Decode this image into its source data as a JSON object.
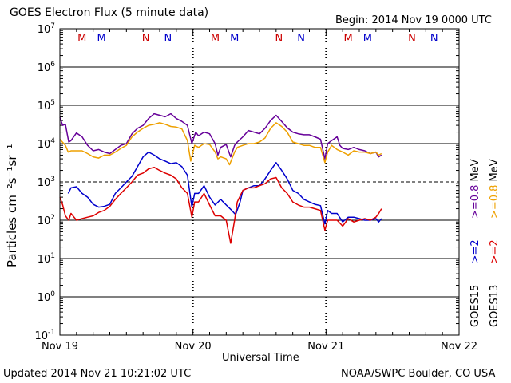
{
  "header": {
    "title": "GOES Electron Flux (5 minute data)",
    "begin": "Begin: 2014 Nov 19 0000 UTC"
  },
  "footer": {
    "updated": "Updated 2014 Nov 21 10:21:02 UTC",
    "source": "NOAA/SWPC Boulder, CO USA"
  },
  "colors": {
    "goes15_2mev": "#0000cc",
    "goes15_08mev": "#660099",
    "goes13_2mev": "#dd0000",
    "goes13_08mev": "#eea000",
    "marker_m": "#cc0000",
    "marker_m2": "#0000cc",
    "marker_n": "#cc0000",
    "marker_n2": "#0000cc"
  },
  "chart_data": {
    "type": "line",
    "xlabel": "Universal Time",
    "ylabel": "Particles cm⁻²s⁻¹sr⁻¹",
    "yscale": "log",
    "xlim": [
      0,
      72
    ],
    "ylim": [
      0.1,
      10000000
    ],
    "x_ticks": [
      {
        "x": 0,
        "label": "Nov 19"
      },
      {
        "x": 24,
        "label": "Nov 20"
      },
      {
        "x": 48,
        "label": "Nov 21"
      },
      {
        "x": 72,
        "label": "Nov 22"
      }
    ],
    "y_ticks": [
      {
        "exp": 7,
        "base": "10",
        "sup": "7"
      },
      {
        "exp": 6,
        "base": "10",
        "sup": "6"
      },
      {
        "exp": 5,
        "base": "10",
        "sup": "5"
      },
      {
        "exp": 4,
        "base": "10",
        "sup": "4"
      },
      {
        "exp": 3,
        "base": "10",
        "sup": "3"
      },
      {
        "exp": 2,
        "base": "10",
        "sup": "2"
      },
      {
        "exp": 1,
        "base": "10",
        "sup": "1"
      },
      {
        "exp": 0,
        "base": "10",
        "sup": "0"
      },
      {
        "exp": -1,
        "base": "10",
        "sup": "-1"
      }
    ],
    "gridlines_solid": [
      6,
      5,
      4,
      2,
      1,
      0
    ],
    "gridlines_dashed": [
      3
    ],
    "day_separators": [
      24,
      48
    ],
    "markers": [
      {
        "x": 4.0,
        "label": "M",
        "color": "#cc0000"
      },
      {
        "x": 7.5,
        "label": "M",
        "color": "#0000cc"
      },
      {
        "x": 15.5,
        "label": "N",
        "color": "#cc0000"
      },
      {
        "x": 19.5,
        "label": "N",
        "color": "#0000cc"
      },
      {
        "x": 28.0,
        "label": "M",
        "color": "#cc0000"
      },
      {
        "x": 31.5,
        "label": "M",
        "color": "#0000cc"
      },
      {
        "x": 39.5,
        "label": "N",
        "color": "#cc0000"
      },
      {
        "x": 43.5,
        "label": "N",
        "color": "#0000cc"
      },
      {
        "x": 52.0,
        "label": "M",
        "color": "#cc0000"
      },
      {
        "x": 55.5,
        "label": "M",
        "color": "#0000cc"
      },
      {
        "x": 63.5,
        "label": "N",
        "color": "#cc0000"
      },
      {
        "x": 67.5,
        "label": "N",
        "color": "#0000cc"
      }
    ],
    "legend": {
      "placement": "right",
      "groups": [
        {
          "sat": "GOES15",
          "items": [
            {
              "text": ">=2",
              "color": "#0000cc"
            },
            {
              "text": ">=0.8",
              "color": "#660099"
            }
          ],
          "unit": "MeV"
        },
        {
          "sat": "GOES13",
          "items": [
            {
              "text": ">=2",
              "color": "#dd0000"
            },
            {
              "text": ">=0.8",
              "color": "#eea000"
            }
          ],
          "unit": "MeV"
        }
      ]
    },
    "series": [
      {
        "color": "#660099",
        "points": [
          [
            0,
            48000
          ],
          [
            0.5,
            30000
          ],
          [
            1,
            32000
          ],
          [
            1.6,
            11000
          ],
          [
            2,
            12000
          ],
          [
            3,
            19000
          ],
          [
            4,
            15000
          ],
          [
            5,
            9000
          ],
          [
            6,
            6500
          ],
          [
            7,
            7000
          ],
          [
            8,
            6000
          ],
          [
            9,
            5500
          ],
          [
            10,
            7000
          ],
          [
            11,
            9000
          ],
          [
            12,
            10000
          ],
          [
            13,
            18000
          ],
          [
            14,
            25000
          ],
          [
            15,
            30000
          ],
          [
            16,
            45000
          ],
          [
            17,
            60000
          ],
          [
            18,
            55000
          ],
          [
            19,
            50000
          ],
          [
            20,
            60000
          ],
          [
            21,
            45000
          ],
          [
            22,
            38000
          ],
          [
            23,
            30000
          ],
          [
            23.8,
            10000
          ],
          [
            24.5,
            20000
          ],
          [
            25,
            16000
          ],
          [
            26,
            20000
          ],
          [
            27,
            18000
          ],
          [
            28,
            10000
          ],
          [
            28.5,
            5000
          ],
          [
            29,
            8000
          ],
          [
            30,
            9500
          ],
          [
            30.8,
            4500
          ],
          [
            31.5,
            9000
          ],
          [
            32,
            11000
          ],
          [
            33,
            15000
          ],
          [
            34,
            22000
          ],
          [
            35,
            20000
          ],
          [
            36,
            18000
          ],
          [
            37,
            25000
          ],
          [
            38,
            40000
          ],
          [
            39,
            55000
          ],
          [
            40,
            38000
          ],
          [
            41,
            26000
          ],
          [
            42,
            20000
          ],
          [
            43,
            18000
          ],
          [
            44,
            17000
          ],
          [
            45,
            17000
          ],
          [
            46,
            15000
          ],
          [
            47,
            13000
          ],
          [
            47.8,
            4000
          ],
          [
            48.3,
            10000
          ],
          [
            49,
            12000
          ],
          [
            50,
            15000
          ],
          [
            50.5,
            9000
          ],
          [
            51,
            7500
          ],
          [
            52,
            7000
          ],
          [
            53,
            8000
          ],
          [
            54,
            7000
          ],
          [
            55,
            6500
          ],
          [
            56,
            5500
          ],
          [
            57,
            6000
          ],
          [
            57.5,
            4500
          ],
          [
            58,
            5000
          ]
        ]
      },
      {
        "color": "#eea000",
        "points": [
          [
            0,
            13000
          ],
          [
            1,
            9000
          ],
          [
            1.5,
            6000
          ],
          [
            2,
            6500
          ],
          [
            3,
            6500
          ],
          [
            4,
            6500
          ],
          [
            5,
            5500
          ],
          [
            6,
            4500
          ],
          [
            7,
            4200
          ],
          [
            8,
            5000
          ],
          [
            9,
            5000
          ],
          [
            10,
            6000
          ],
          [
            11,
            7500
          ],
          [
            12,
            9000
          ],
          [
            13,
            15000
          ],
          [
            14,
            20000
          ],
          [
            15,
            25000
          ],
          [
            16,
            30000
          ],
          [
            17,
            32000
          ],
          [
            18,
            35000
          ],
          [
            19,
            32000
          ],
          [
            20,
            28000
          ],
          [
            21,
            27000
          ],
          [
            22,
            24000
          ],
          [
            23,
            12000
          ],
          [
            23.6,
            3500
          ],
          [
            24.3,
            9000
          ],
          [
            25,
            8000
          ],
          [
            26,
            10000
          ],
          [
            27,
            9500
          ],
          [
            28,
            6000
          ],
          [
            28.5,
            4000
          ],
          [
            29,
            4500
          ],
          [
            30,
            4000
          ],
          [
            30.6,
            2800
          ],
          [
            31.5,
            6000
          ],
          [
            32,
            8000
          ],
          [
            33,
            9000
          ],
          [
            34,
            10000
          ],
          [
            35,
            10000
          ],
          [
            36,
            11000
          ],
          [
            37,
            14000
          ],
          [
            38,
            25000
          ],
          [
            39,
            35000
          ],
          [
            40,
            28000
          ],
          [
            41,
            20000
          ],
          [
            42,
            11000
          ],
          [
            43,
            10000
          ],
          [
            44,
            9000
          ],
          [
            45,
            9000
          ],
          [
            46,
            8000
          ],
          [
            47,
            8000
          ],
          [
            47.8,
            3200
          ],
          [
            48.3,
            6000
          ],
          [
            49,
            9000
          ],
          [
            50,
            7000
          ],
          [
            51,
            6000
          ],
          [
            52,
            5000
          ],
          [
            53,
            6500
          ],
          [
            54,
            6000
          ],
          [
            55,
            6000
          ],
          [
            56,
            5500
          ],
          [
            57,
            6000
          ],
          [
            57.5,
            5000
          ],
          [
            58,
            5500
          ]
        ]
      },
      {
        "color": "#0000cc",
        "points": [
          [
            1.5,
            500
          ],
          [
            2,
            700
          ],
          [
            3,
            750
          ],
          [
            4,
            500
          ],
          [
            5,
            400
          ],
          [
            6,
            260
          ],
          [
            7,
            220
          ],
          [
            8,
            230
          ],
          [
            9,
            260
          ],
          [
            10,
            500
          ],
          [
            11,
            700
          ],
          [
            12,
            1000
          ],
          [
            13,
            1400
          ],
          [
            14,
            2500
          ],
          [
            15,
            4500
          ],
          [
            16,
            6000
          ],
          [
            17,
            5000
          ],
          [
            18,
            4000
          ],
          [
            19,
            3500
          ],
          [
            20,
            3000
          ],
          [
            21,
            3200
          ],
          [
            22,
            2500
          ],
          [
            23,
            1500
          ],
          [
            23.8,
            220
          ],
          [
            24.3,
            500
          ],
          [
            25,
            500
          ],
          [
            26,
            800
          ],
          [
            27,
            400
          ],
          [
            28,
            250
          ],
          [
            29,
            350
          ],
          [
            30,
            250
          ],
          [
            31,
            180
          ],
          [
            31.7,
            140
          ],
          [
            32.5,
            300
          ],
          [
            33,
            600
          ],
          [
            34,
            700
          ],
          [
            35,
            800
          ],
          [
            36,
            800
          ],
          [
            37,
            1200
          ],
          [
            38,
            2000
          ],
          [
            39,
            3200
          ],
          [
            40,
            2000
          ],
          [
            41,
            1200
          ],
          [
            42,
            600
          ],
          [
            43,
            500
          ],
          [
            44,
            350
          ],
          [
            45,
            300
          ],
          [
            46,
            260
          ],
          [
            47,
            240
          ],
          [
            47.8,
            80
          ],
          [
            48.3,
            180
          ],
          [
            49,
            150
          ],
          [
            50,
            150
          ],
          [
            51,
            90
          ],
          [
            52,
            120
          ],
          [
            53,
            120
          ],
          [
            54,
            110
          ],
          [
            55,
            100
          ],
          [
            56,
            100
          ],
          [
            57,
            110
          ],
          [
            57.5,
            90
          ],
          [
            58,
            110
          ]
        ]
      },
      {
        "color": "#dd0000",
        "points": [
          [
            0,
            400
          ],
          [
            0.5,
            250
          ],
          [
            1,
            130
          ],
          [
            1.6,
            100
          ],
          [
            2,
            150
          ],
          [
            3,
            100
          ],
          [
            4,
            110
          ],
          [
            5,
            120
          ],
          [
            6,
            130
          ],
          [
            7,
            160
          ],
          [
            8,
            180
          ],
          [
            9,
            230
          ],
          [
            10,
            350
          ],
          [
            11,
            500
          ],
          [
            12,
            700
          ],
          [
            13,
            1000
          ],
          [
            14,
            1500
          ],
          [
            15,
            1700
          ],
          [
            16,
            2200
          ],
          [
            17,
            2400
          ],
          [
            18,
            2000
          ],
          [
            19,
            1700
          ],
          [
            20,
            1500
          ],
          [
            21,
            1200
          ],
          [
            22,
            700
          ],
          [
            23,
            500
          ],
          [
            23.8,
            120
          ],
          [
            24.3,
            300
          ],
          [
            25,
            300
          ],
          [
            26,
            500
          ],
          [
            27,
            250
          ],
          [
            28,
            130
          ],
          [
            29,
            130
          ],
          [
            30,
            100
          ],
          [
            30.8,
            25
          ],
          [
            31.5,
            100
          ],
          [
            32,
            300
          ],
          [
            33,
            600
          ],
          [
            34,
            700
          ],
          [
            35,
            700
          ],
          [
            36,
            800
          ],
          [
            37,
            900
          ],
          [
            38,
            1200
          ],
          [
            39,
            1300
          ],
          [
            40,
            700
          ],
          [
            41,
            500
          ],
          [
            42,
            300
          ],
          [
            43,
            250
          ],
          [
            44,
            220
          ],
          [
            45,
            220
          ],
          [
            46,
            200
          ],
          [
            47,
            180
          ],
          [
            47.8,
            55
          ],
          [
            48.3,
            100
          ],
          [
            49,
            100
          ],
          [
            50,
            100
          ],
          [
            51,
            70
          ],
          [
            52,
            110
          ],
          [
            53,
            90
          ],
          [
            54,
            100
          ],
          [
            55,
            110
          ],
          [
            56,
            100
          ],
          [
            57,
            120
          ],
          [
            57.5,
            150
          ],
          [
            58,
            200
          ]
        ]
      }
    ]
  }
}
